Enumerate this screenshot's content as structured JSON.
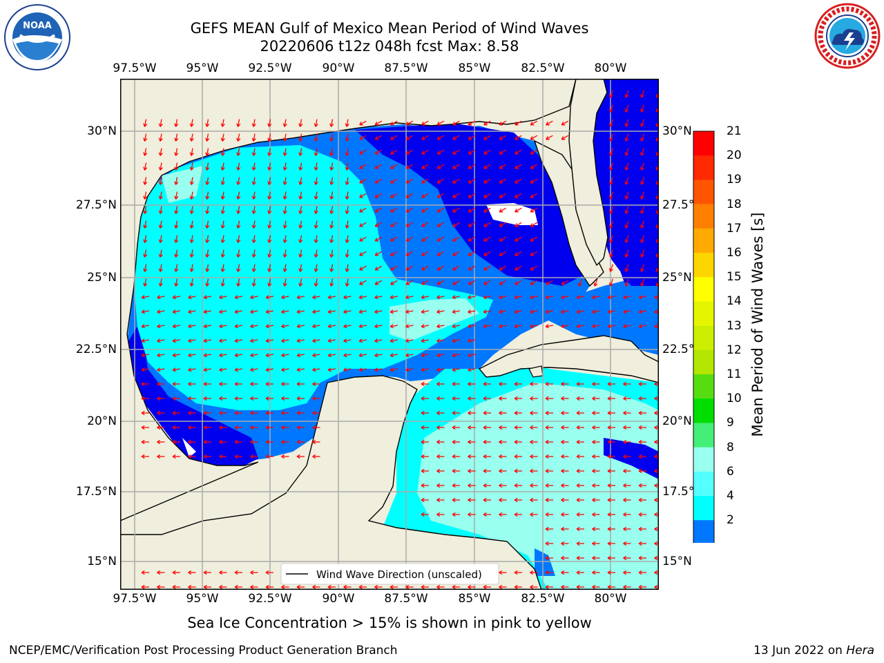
{
  "title_line1": "GEFS MEAN Gulf of Mexico Mean Period of Wind Waves",
  "title_line2": "20220606 t12z 048h fcst   Max: 8.58",
  "lon_ticks": [
    "97.5°W",
    "95°W",
    "92.5°W",
    "90°W",
    "87.5°W",
    "85°W",
    "82.5°W",
    "80°W"
  ],
  "lat_ticks": [
    "30°N",
    "27.5°N",
    "25°N",
    "22.5°N",
    "20°N",
    "17.5°N",
    "15°N"
  ],
  "colorbar": {
    "label": "Mean Period of Wind Waves [s]",
    "ticks": [
      "21",
      "20",
      "19",
      "18",
      "17",
      "16",
      "15",
      "14",
      "13",
      "12",
      "11",
      "10",
      "9",
      "8",
      "6",
      "4",
      "2"
    ],
    "colors": [
      "#ff0000",
      "#ff2a00",
      "#ff5500",
      "#ff8000",
      "#ffaa00",
      "#ffd500",
      "#ffff00",
      "#e5f500",
      "#ccee00",
      "#b3e600",
      "#55dd11",
      "#00dd00",
      "#44ee77",
      "#99ffee",
      "#55ffff",
      "#00ffff",
      "#0077ff"
    ],
    "extend_color": "#0000ee"
  },
  "legend_label": "Wind Wave Direction (unscaled)",
  "sea_ice_note": "Sea Ice Concentration > 15% is shown in pink to yellow",
  "footer_left": "NCEP/EMC/Verification Post Processing Product Generation Branch",
  "footer_date": "13 Jun 2022 on ",
  "footer_host": "Hera",
  "logos": {
    "left": "noaa-logo",
    "right": "nws-logo"
  },
  "colors": {
    "land": "#f0eedc",
    "arrow": "#ff0000",
    "grid": "#aaaaaa",
    "deep_blue": "#0000ee",
    "blue": "#0077ff",
    "cyan": "#00ffff",
    "light_cyan": "#99ffee"
  }
}
